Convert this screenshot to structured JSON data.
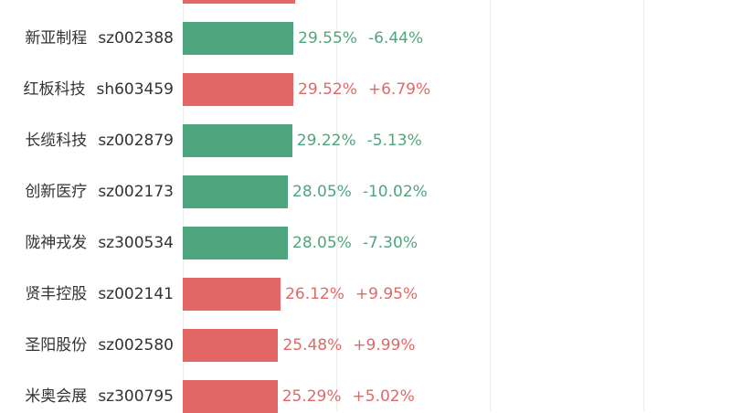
{
  "chart_data": {
    "type": "bar",
    "orientation": "horizontal",
    "grid": true,
    "colors": {
      "up": "#e46767",
      "down": "#4fa67e"
    },
    "rows": [
      {
        "name": "",
        "code": "",
        "value": null,
        "change": "",
        "direction": "up"
      },
      {
        "name": "新亚制程",
        "code": "sz002388",
        "value": 29.55,
        "value_label": "29.55%",
        "change": "-6.44%",
        "direction": "down"
      },
      {
        "name": "红板科技",
        "code": "sh603459",
        "value": 29.52,
        "value_label": "29.52%",
        "change": "+6.79%",
        "direction": "up"
      },
      {
        "name": "长缆科技",
        "code": "sz002879",
        "value": 29.22,
        "value_label": "29.22%",
        "change": "-5.13%",
        "direction": "down"
      },
      {
        "name": "创新医疗",
        "code": "sz002173",
        "value": 28.05,
        "value_label": "28.05%",
        "change": "-10.02%",
        "direction": "down"
      },
      {
        "name": "陇神戎发",
        "code": "sz300534",
        "value": 28.05,
        "value_label": "28.05%",
        "change": "-7.30%",
        "direction": "down"
      },
      {
        "name": "贤丰控股",
        "code": "sz002141",
        "value": 26.12,
        "value_label": "26.12%",
        "change": "+9.95%",
        "direction": "up"
      },
      {
        "name": "圣阳股份",
        "code": "sz002580",
        "value": 25.48,
        "value_label": "25.48%",
        "change": "+9.99%",
        "direction": "up"
      },
      {
        "name": "米奥会展",
        "code": "sz300795",
        "value": 25.29,
        "value_label": "25.29%",
        "change": "+5.02%",
        "direction": "up"
      }
    ]
  }
}
